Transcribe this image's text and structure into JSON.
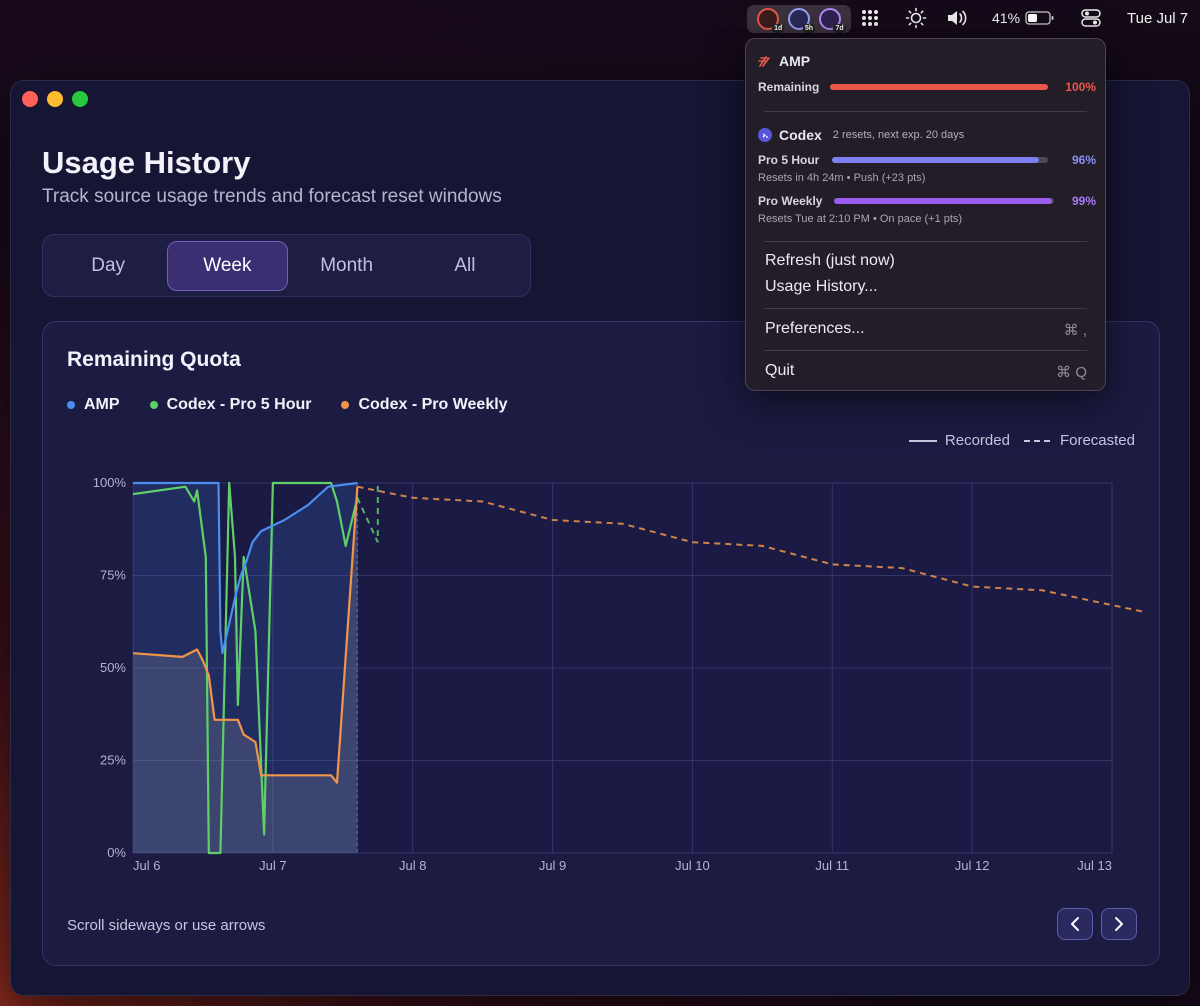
{
  "menubar": {
    "tray_badges": [
      "1d",
      "5h",
      "7d"
    ],
    "battery": "41%",
    "clock": "Tue Jul 7"
  },
  "window": {
    "title": "Usage History",
    "subtitle": "Track source usage trends and forecast reset windows",
    "range_tabs": [
      {
        "label": "Day",
        "active": false
      },
      {
        "label": "Week",
        "active": true
      },
      {
        "label": "Month",
        "active": false
      },
      {
        "label": "All",
        "active": false
      }
    ],
    "card": {
      "title": "Remaining Quota",
      "legend": [
        {
          "label": "AMP",
          "color": "#4a8ff0"
        },
        {
          "label": "Codex - Pro 5 Hour",
          "color": "#5fd068"
        },
        {
          "label": "Codex - Pro Weekly",
          "color": "#f0954a"
        }
      ],
      "style_legend": {
        "recorded": "Recorded",
        "forecasted": "Forecasted"
      },
      "hint": "Scroll sideways or use arrows",
      "prev_icon": "chevron-left-icon",
      "next_icon": "chevron-right-icon"
    }
  },
  "chart_data": {
    "type": "line",
    "title": "Remaining Quota",
    "ylabel": "",
    "xlabel": "",
    "x_ticks": [
      "Jul 6",
      "Jul 7",
      "Jul 8",
      "Jul 9",
      "Jul 10",
      "Jul 11",
      "Jul 12",
      "Jul 13"
    ],
    "y_ticks": [
      "0%",
      "25%",
      "50%",
      "75%",
      "100%"
    ],
    "ylim": [
      0,
      100
    ],
    "xlim_days": [
      "Jul 6",
      "Jul 13"
    ],
    "grid": true,
    "series": [
      {
        "name": "AMP",
        "color": "#4a8ff0",
        "style": "recorded",
        "points": [
          [
            "Jul 6 00:00",
            100
          ],
          [
            "Jul 6 14:00",
            100
          ],
          [
            "Jul 6 14:40",
            100
          ],
          [
            "Jul 6 15:00",
            60
          ],
          [
            "Jul 6 15:20",
            54
          ],
          [
            "Jul 6 16:30",
            62
          ],
          [
            "Jul 6 17:30",
            69
          ],
          [
            "Jul 6 18:30",
            75
          ],
          [
            "Jul 6 19:30",
            79
          ],
          [
            "Jul 6 20:30",
            84
          ],
          [
            "Jul 6 22:00",
            87
          ],
          [
            "Jul 7 02:00",
            90
          ],
          [
            "Jul 7 06:00",
            94
          ],
          [
            "Jul 7 09:30",
            99
          ],
          [
            "Jul 7 14:30",
            100
          ]
        ]
      },
      {
        "name": "Codex - Pro 5 Hour",
        "color": "#5fd068",
        "style": "recorded",
        "points": [
          [
            "Jul 6 00:00",
            97
          ],
          [
            "Jul 6 09:00",
            99
          ],
          [
            "Jul 6 10:30",
            95
          ],
          [
            "Jul 6 11:00",
            98
          ],
          [
            "Jul 6 12:30",
            80
          ],
          [
            "Jul 6 13:00",
            0
          ],
          [
            "Jul 6 15:00",
            0
          ],
          [
            "Jul 6 16:30",
            100
          ],
          [
            "Jul 6 17:30",
            80
          ],
          [
            "Jul 6 18:00",
            40
          ],
          [
            "Jul 6 19:00",
            80
          ],
          [
            "Jul 6 21:00",
            60
          ],
          [
            "Jul 6 22:30",
            5
          ],
          [
            "Jul 7 00:00",
            100
          ],
          [
            "Jul 7 10:00",
            100
          ],
          [
            "Jul 7 11:00",
            95
          ],
          [
            "Jul 7 12:30",
            83
          ],
          [
            "Jul 7 14:30",
            96
          ]
        ],
        "forecast_points": [
          [
            "Jul 7 14:30",
            96
          ],
          [
            "Jul 7 18:00",
            84
          ],
          [
            "Jul 7 18:00",
            100
          ]
        ]
      },
      {
        "name": "Codex - Pro Weekly",
        "color": "#f0954a",
        "style": "recorded",
        "points": [
          [
            "Jul 6 00:00",
            54
          ],
          [
            "Jul 6 08:30",
            53
          ],
          [
            "Jul 6 11:00",
            55
          ],
          [
            "Jul 6 12:00",
            52
          ],
          [
            "Jul 6 13:00",
            48
          ],
          [
            "Jul 6 14:00",
            36
          ],
          [
            "Jul 6 18:00",
            36
          ],
          [
            "Jul 6 19:00",
            32
          ],
          [
            "Jul 6 21:00",
            30
          ],
          [
            "Jul 6 22:00",
            21
          ],
          [
            "Jul 7 10:00",
            21
          ],
          [
            "Jul 7 11:00",
            19
          ],
          [
            "Jul 7 14:30",
            99
          ]
        ],
        "forecast_points": [
          [
            "Jul 7 14:30",
            99
          ],
          [
            "Jul 8 00:00",
            96
          ],
          [
            "Jul 8 12:00",
            95
          ],
          [
            "Jul 9 00:00",
            90
          ],
          [
            "Jul 9 12:00",
            89
          ],
          [
            "Jul 10 00:00",
            84
          ],
          [
            "Jul 10 12:00",
            83
          ],
          [
            "Jul 11 00:00",
            78
          ],
          [
            "Jul 11 12:00",
            77
          ],
          [
            "Jul 12 00:00",
            72
          ],
          [
            "Jul 12 12:00",
            71
          ],
          [
            "Jul 13 00:00",
            67
          ],
          [
            "Jul 13 06:00",
            65
          ]
        ]
      }
    ]
  },
  "dropdown": {
    "amp": {
      "name": "AMP",
      "rows": [
        {
          "label": "Remaining",
          "pct": "100%",
          "value": 100,
          "color": "#e8594a"
        }
      ]
    },
    "codex": {
      "name": "Codex",
      "note": "2 resets, next exp. 20 days",
      "rows": [
        {
          "label": "Pro 5 Hour",
          "pct": "96%",
          "value": 96,
          "color": "#7d7ef0",
          "sub": "Resets in 4h 24m • Push (+23 pts)"
        },
        {
          "label": "Pro Weekly",
          "pct": "99%",
          "value": 99,
          "color": "#9c5cf0",
          "sub": "Resets Tue at 2:10 PM • On pace (+1 pts)"
        }
      ]
    },
    "menu": [
      {
        "label": "Refresh (just now)",
        "shortcut": ""
      },
      {
        "label": "Usage History...",
        "shortcut": ""
      },
      {
        "label": "Preferences...",
        "shortcut": "⌘ ,"
      },
      {
        "label": "Quit",
        "shortcut": "⌘ Q"
      }
    ]
  }
}
